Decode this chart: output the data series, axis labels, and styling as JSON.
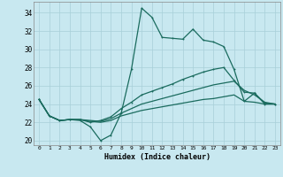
{
  "xlabel": "Humidex (Indice chaleur)",
  "xlim": [
    -0.5,
    23.5
  ],
  "ylim": [
    19.5,
    35.2
  ],
  "yticks": [
    20,
    22,
    24,
    26,
    28,
    30,
    32,
    34
  ],
  "xticks": [
    0,
    1,
    2,
    3,
    4,
    5,
    6,
    7,
    8,
    9,
    10,
    11,
    12,
    13,
    14,
    15,
    16,
    17,
    18,
    19,
    20,
    21,
    22,
    23
  ],
  "bg_color": "#c8e8f0",
  "grid_color": "#a8cfd8",
  "line_color": "#1a6b5e",
  "lines": [
    {
      "y": [
        24.5,
        22.7,
        22.2,
        22.3,
        22.2,
        21.5,
        20.0,
        20.6,
        23.0,
        27.8,
        34.5,
        33.5,
        31.3,
        31.2,
        31.1,
        32.2,
        31.0,
        30.8,
        30.3,
        27.8,
        24.3,
        25.2,
        24.0,
        24.0
      ],
      "marker": true
    },
    {
      "y": [
        24.5,
        22.7,
        22.2,
        22.3,
        22.3,
        22.0,
        22.2,
        22.6,
        23.5,
        24.2,
        25.0,
        25.4,
        25.8,
        26.2,
        26.7,
        27.1,
        27.5,
        27.8,
        28.0,
        26.6,
        25.3,
        25.2,
        24.1,
        24.0
      ],
      "marker": true
    },
    {
      "y": [
        24.5,
        22.7,
        22.2,
        22.3,
        22.3,
        22.2,
        22.1,
        22.4,
        23.0,
        23.5,
        24.0,
        24.3,
        24.6,
        24.9,
        25.2,
        25.5,
        25.8,
        26.1,
        26.3,
        26.5,
        25.5,
        25.0,
        24.2,
        24.0
      ],
      "marker": false
    },
    {
      "y": [
        24.5,
        22.7,
        22.2,
        22.3,
        22.3,
        22.1,
        22.0,
        22.2,
        22.7,
        23.0,
        23.3,
        23.5,
        23.7,
        23.9,
        24.1,
        24.3,
        24.5,
        24.6,
        24.8,
        25.0,
        24.3,
        24.2,
        24.0,
        24.0
      ],
      "marker": false
    }
  ]
}
